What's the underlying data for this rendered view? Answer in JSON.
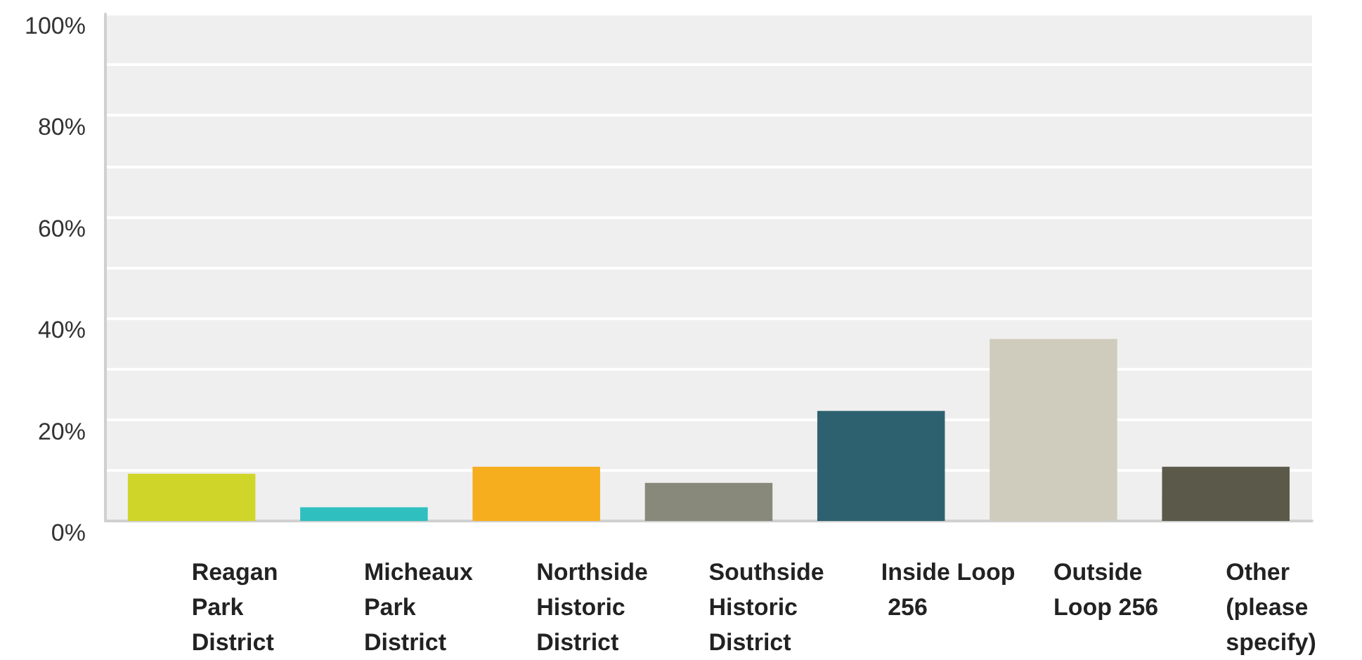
{
  "chart_data": {
    "type": "bar",
    "categories": [
      "Reagan Park District",
      "Micheaux Park District",
      "Northside Historic District",
      "Southside Historic District",
      "Inside Loop 256",
      "Outside Loop 256",
      "Other (please specify)"
    ],
    "values": [
      9.3,
      2.7,
      10.7,
      7.5,
      21.7,
      35.9,
      10.7
    ],
    "colors": [
      "#d0d52a",
      "#2fbfbf",
      "#f6ae1f",
      "#88897a",
      "#2e6170",
      "#cfccbd",
      "#5b5a4a"
    ],
    "ylim": [
      0,
      100
    ],
    "yticks": [
      {
        "value": 0,
        "label": "0%"
      },
      {
        "value": 10,
        "label": null
      },
      {
        "value": 20,
        "label": "20%"
      },
      {
        "value": 30,
        "label": null
      },
      {
        "value": 40,
        "label": "40%"
      },
      {
        "value": 50,
        "label": null
      },
      {
        "value": 60,
        "label": "60%"
      },
      {
        "value": 70,
        "label": null
      },
      {
        "value": 80,
        "label": "80%"
      },
      {
        "value": 90,
        "label": null
      },
      {
        "value": 100,
        "label": "100%"
      }
    ],
    "grid": true
  }
}
